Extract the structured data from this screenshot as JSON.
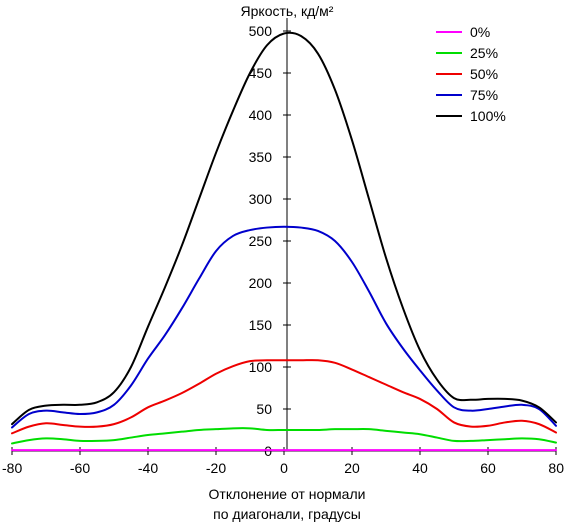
{
  "chart_data": {
    "type": "line",
    "ylabel": "Яркость, кд/м²",
    "xlabel_lines": [
      "Отклонение от нормали",
      "по диагонали, градусы"
    ],
    "xlim": [
      -80,
      80
    ],
    "ylim": [
      0,
      500
    ],
    "xticks": [
      -80,
      -60,
      -40,
      -20,
      0,
      20,
      40,
      60,
      80
    ],
    "yticks": [
      0,
      50,
      100,
      150,
      200,
      250,
      300,
      350,
      400,
      450,
      500
    ],
    "grid": false,
    "legend_position": "top-right",
    "x": [
      -80,
      -75,
      -70,
      -65,
      -60,
      -55,
      -50,
      -45,
      -40,
      -35,
      -30,
      -25,
      -20,
      -15,
      -10,
      -5,
      0,
      5,
      10,
      15,
      20,
      25,
      30,
      35,
      40,
      45,
      50,
      55,
      60,
      65,
      70,
      75,
      80
    ],
    "series": [
      {
        "name": "0%",
        "color": "#ff00ff",
        "values": [
          1,
          1,
          1,
          1,
          1,
          1,
          1,
          1,
          1,
          1,
          1,
          1,
          1,
          1,
          1,
          1,
          1,
          1,
          1,
          1,
          1,
          1,
          1,
          1,
          1,
          1,
          1,
          1,
          1,
          1,
          1,
          1,
          1
        ]
      },
      {
        "name": "25%",
        "color": "#00dd00",
        "values": [
          9,
          13,
          15,
          14,
          12,
          12,
          13,
          16,
          19,
          21,
          23,
          25,
          26,
          27,
          27,
          25,
          25,
          25,
          25,
          26,
          26,
          26,
          24,
          22,
          20,
          16,
          12,
          12,
          13,
          14,
          15,
          14,
          10
        ]
      },
      {
        "name": "50%",
        "color": "#ee0000",
        "values": [
          21,
          29,
          33,
          31,
          29,
          29,
          32,
          40,
          52,
          60,
          69,
          80,
          92,
          101,
          107,
          108,
          108,
          108,
          108,
          105,
          97,
          88,
          79,
          70,
          62,
          50,
          34,
          29,
          30,
          34,
          36,
          32,
          22
        ]
      },
      {
        "name": "75%",
        "color": "#0000cc",
        "values": [
          28,
          44,
          48,
          46,
          44,
          46,
          55,
          78,
          110,
          138,
          170,
          205,
          238,
          256,
          263,
          266,
          267,
          266,
          262,
          250,
          225,
          190,
          152,
          122,
          96,
          72,
          52,
          48,
          50,
          53,
          55,
          50,
          30
        ]
      },
      {
        "name": "100%",
        "color": "#000000",
        "values": [
          32,
          49,
          54,
          55,
          55,
          58,
          70,
          100,
          148,
          195,
          245,
          300,
          355,
          405,
          450,
          483,
          497,
          494,
          473,
          430,
          370,
          300,
          230,
          170,
          120,
          85,
          63,
          61,
          62,
          62,
          60,
          52,
          34
        ]
      }
    ]
  }
}
